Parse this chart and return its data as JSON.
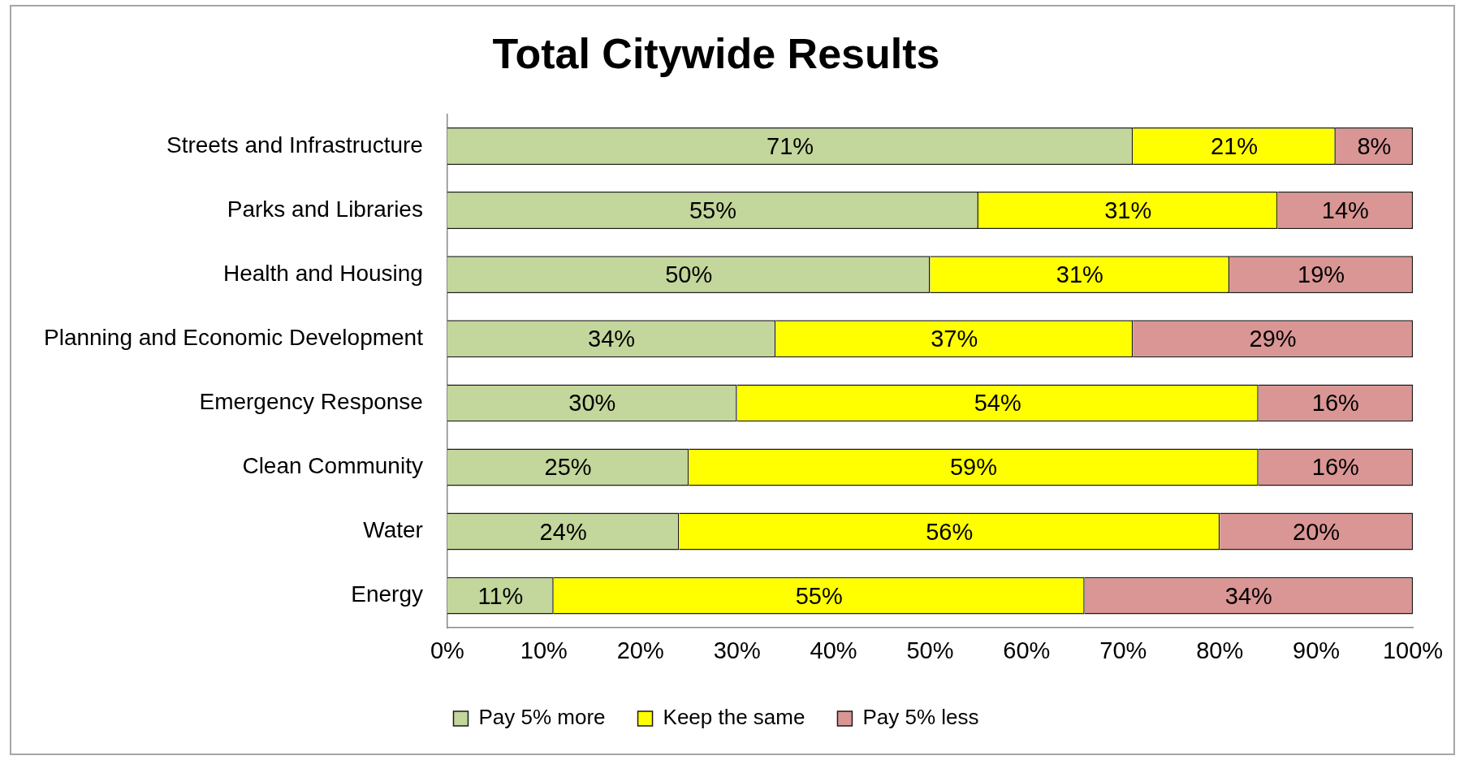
{
  "chart_data": {
    "type": "bar",
    "title": "Total Citywide Results",
    "orientation": "horizontal",
    "stacked": true,
    "categories": [
      "Streets and Infrastructure",
      "Parks and Libraries",
      "Health and Housing",
      "Planning and Economic Development",
      "Emergency Response",
      "Clean Community",
      "Water",
      "Energy"
    ],
    "series": [
      {
        "name": "Pay 5% more",
        "color": "#c3d69b",
        "values": [
          71,
          55,
          50,
          34,
          30,
          25,
          24,
          11
        ],
        "value_labels": [
          "71%",
          "55%",
          "50%",
          "34%",
          "30%",
          "25%",
          "24%",
          "11%"
        ]
      },
      {
        "name": "Keep the same",
        "color": "#ffff00",
        "values": [
          21,
          31,
          31,
          37,
          54,
          59,
          56,
          55
        ],
        "value_labels": [
          "21%",
          "31%",
          "31%",
          "37%",
          "54%",
          "59%",
          "56%",
          "55%"
        ]
      },
      {
        "name": "Pay 5% less",
        "color": "#d99694",
        "values": [
          8,
          14,
          19,
          29,
          16,
          16,
          20,
          34
        ],
        "value_labels": [
          "8%",
          "14%",
          "19%",
          "29%",
          "16%",
          "16%",
          "20%",
          "34%"
        ]
      }
    ],
    "xlim": [
      0,
      100
    ],
    "xticks": [
      {
        "value": 0,
        "label": "0%"
      },
      {
        "value": 10,
        "label": "10%"
      },
      {
        "value": 20,
        "label": "20%"
      },
      {
        "value": 30,
        "label": "30%"
      },
      {
        "value": 40,
        "label": "40%"
      },
      {
        "value": 50,
        "label": "50%"
      },
      {
        "value": 60,
        "label": "60%"
      },
      {
        "value": 70,
        "label": "70%"
      },
      {
        "value": 80,
        "label": "80%"
      },
      {
        "value": 90,
        "label": "90%"
      },
      {
        "value": 100,
        "label": "100%"
      }
    ],
    "grid": false,
    "legend": "bottom"
  }
}
